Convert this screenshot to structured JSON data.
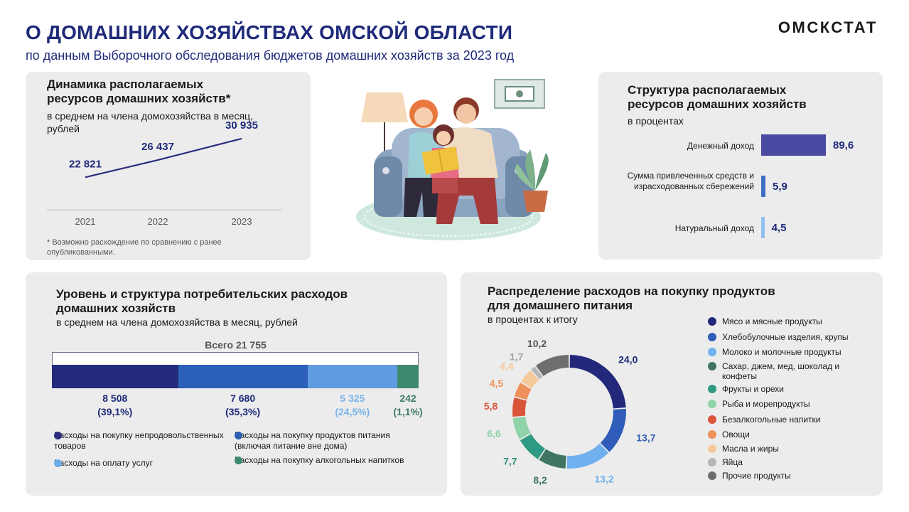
{
  "header": {
    "title": "О ДОМАШНИХ ХОЗЯЙСТВАХ ОМСКОЙ ОБЛАСТИ",
    "subtitle": "по данным  Выборочного обследования бюджетов домашних  хозяйств за 2023 год",
    "logo": "ОМСКСТАТ"
  },
  "dynamics": {
    "title_line1": "Динамика располагаемых",
    "title_line2": "ресурсов домашних хозяйств*",
    "sub_line1": "в среднем на члена домохозяйства в месяц,",
    "sub_line2": "рублей",
    "footnote": "* Возможно расхождение по сравнению с ранее опубликованными."
  },
  "structure": {
    "title_line1": "Структура располагаемых",
    "title_line2": "ресурсов домашних хозяйств",
    "sub": "в процентах"
  },
  "consumption": {
    "title_line1": "Уровень и структура потребительских расходов",
    "title_line2": "домашних хозяйств",
    "sub": "в среднем на члена  домохозяйства в месяц, рублей",
    "total": "Всего  21 755",
    "legend": [
      {
        "label": "Расходы на покупку непродовольственных  товаров",
        "color": "#2b2d7e"
      },
      {
        "label": "Расходы на покупку продуктов питания  (включая питание вне дома)",
        "color": "#2f5fb5"
      },
      {
        "label": "Расходы на оплату  услуг",
        "color": "#6aaee9"
      },
      {
        "label": "Расходы на покупку алкогольных напитков",
        "color": "#3d8a6f"
      }
    ]
  },
  "food": {
    "title_line1": "Распределение расходов на покупку продуктов",
    "title_line2": "для домашнего питания",
    "sub": "в процентах к итогу"
  },
  "chart_data": [
    {
      "type": "line",
      "x": [
        "2021",
        "2022",
        "2023"
      ],
      "values": [
        22821,
        26437,
        30935
      ],
      "labels": [
        "22 821",
        "26 437",
        "30 935"
      ],
      "color": "#2b2d7e"
    },
    {
      "type": "bar",
      "orientation": "horizontal",
      "categories": [
        "Денежный доход",
        "Сумма привлеченных средств и израсходованных сбережений",
        "Натуральный  доход"
      ],
      "values": [
        89.6,
        5.9,
        4.5
      ],
      "labels": [
        "89,6",
        "5,9",
        "4,5"
      ],
      "colors": [
        "#4a4aa3",
        "#3e6fc4",
        "#8fc0f0"
      ]
    },
    {
      "type": "bar",
      "orientation": "stacked-horizontal",
      "total": 21755,
      "values": [
        8508,
        7680,
        5325,
        242
      ],
      "value_labels": [
        "8 508",
        "7 680",
        "5 325",
        "242"
      ],
      "percent_labels": [
        "(39,1%)",
        "(35,3%)",
        "(24,5%)",
        "(1,1%)"
      ],
      "colors": [
        "#242a7c",
        "#2b5fb8",
        "#5f9be0",
        "#3d8a6f"
      ],
      "label_colors": [
        "#1f2a7a",
        "#1f2a7a",
        "#7ab3ea",
        "#3d7d66"
      ]
    },
    {
      "type": "pie",
      "donut": true,
      "categories": [
        "Мясо и мясные продукты",
        "Хлебобулочные  изделия, крупы",
        "Молоко и молочные  продукты",
        "Сахар, джем, мед, шоколад и конфеты",
        "Фрукты и орехи",
        "Рыба и морепродукты",
        "Безалкогольные  напитки",
        "Овощи",
        "Масла и жиры",
        "Яйца",
        "Прочие  продукты"
      ],
      "legend_order": [
        "Мясо и мясные продукты",
        "Хлебобулочные  изделия, крупы",
        "Молоко и молочные  продукты",
        "Сахар, джем, мед, шоколад и конфеты",
        "Фрукты и орехи",
        "Рыба и морепродукты",
        "Безалкогольные  напитки",
        "Овощи",
        "Масла и жиры",
        "Яйца",
        "Прочие  продукты"
      ],
      "ring_order": [
        "Мясо и мясные продукты",
        "Хлебобулочные  изделия, крупы",
        "Молоко и молочные  продукты",
        "Сахар, джем, мед, шоколад и конфеты",
        "Фрукты и орехи",
        "Рыба и морепродукты",
        "Безалкогольные  напитки",
        "Овощи",
        "Масла и жиры",
        "Яйца",
        "Прочие  продукты"
      ],
      "values": [
        24.0,
        13.7,
        13.2,
        8.2,
        7.7,
        6.6,
        5.8,
        4.5,
        4.4,
        1.7,
        10.2
      ],
      "labels": [
        "24,0",
        "13,7",
        "13,2",
        "8,2",
        "7,7",
        "6,6",
        "5,8",
        "4,5",
        "4,4",
        "1,7",
        "10,2"
      ],
      "colors": [
        "#24287a",
        "#2e5cb8",
        "#6fb0ee",
        "#3f7560",
        "#2f9a84",
        "#8fd3a8",
        "#d9553a",
        "#f0905a",
        "#f6c99a",
        "#b5b5b5",
        "#6e6e6e"
      ],
      "label_colors": [
        "#1f2a7a",
        "#2e5cb8",
        "#6fb0ee",
        "#3f7560",
        "#2f8f7a",
        "#8fd3a8",
        "#d9553a",
        "#f0905a",
        "#f6c99a",
        "#a5a5a5",
        "#555555"
      ]
    }
  ]
}
